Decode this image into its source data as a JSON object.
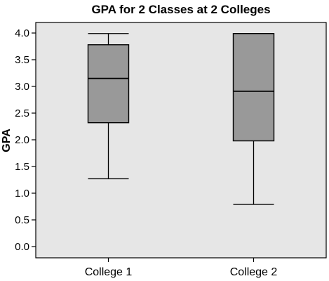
{
  "chart_data": {
    "type": "boxplot",
    "title": "GPA for 2 Classes at 2 Colleges",
    "xlabel": "",
    "ylabel": "GPA",
    "ylim": [
      0.0,
      4.2
    ],
    "yticks": [
      "0.0",
      "0.5",
      "1.0",
      "1.5",
      "2.0",
      "2.5",
      "3.0",
      "3.5",
      "4.0"
    ],
    "categories": [
      "College 1",
      "College 2"
    ],
    "boxes": [
      {
        "category": "College 1",
        "whisker_low": 1.27,
        "q1": 2.32,
        "median": 3.15,
        "q3": 3.78,
        "whisker_high": 3.99
      },
      {
        "category": "College 2",
        "whisker_low": 0.79,
        "q1": 1.98,
        "median": 2.91,
        "q3": 3.99,
        "whisker_high": 3.99
      }
    ],
    "grid": false,
    "colors": {
      "plot_background": "#e6e6e6",
      "box_fill": "#999999",
      "line": "#000000"
    }
  }
}
